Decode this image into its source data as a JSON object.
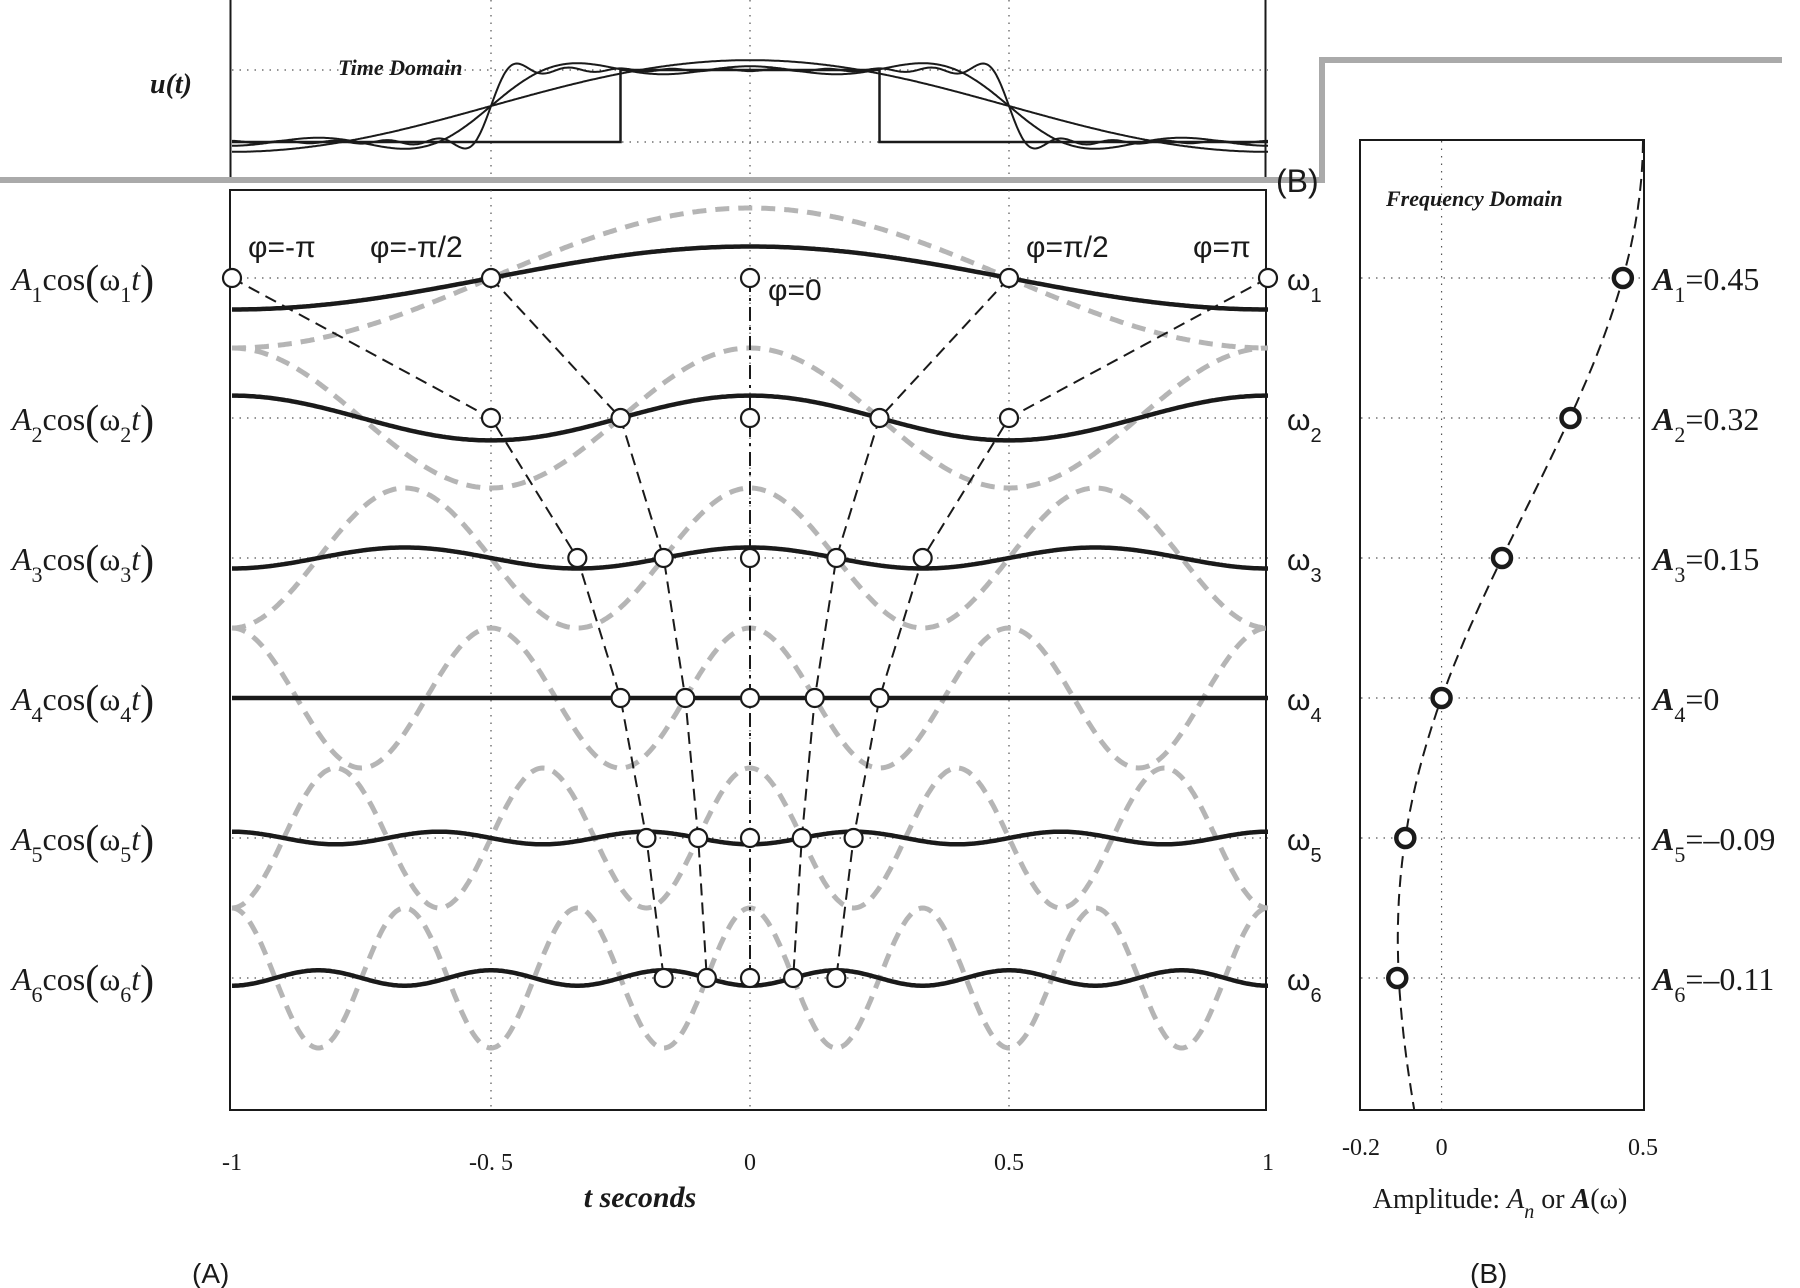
{
  "panel_labels": {
    "a": "(A)",
    "b": "(B)",
    "b_clipped": "(B)"
  },
  "time_panel": {
    "title": "Time Domain",
    "y_label": "u(t)"
  },
  "freq_panel": {
    "title": "Frequency Domain",
    "xlabel_prefix": "Amplitude: ",
    "xlabel_An": "A",
    "xlabel_sub": "n",
    "xlabel_or": " or ",
    "xlabel_Aw": "A",
    "xlabel_w": "(ω)"
  },
  "colors": {
    "ink": "#1a1a1a",
    "shifted": "#b5b5b5",
    "grid": "#555555",
    "frame": "#aaaaaa"
  },
  "chart_data": [
    {
      "type": "line",
      "title": "Time Domain",
      "ylabel": "u(t)",
      "xlim": [
        -1,
        1
      ],
      "description_of_series": "rectangular pulse u(t)=1 for |t|<0.25 and its partial Fourier sums",
      "series": [
        {
          "kind": "pulse",
          "half_width": 0.25
        },
        {
          "kind": "partial_sum",
          "harmonics": 2
        },
        {
          "kind": "partial_sum",
          "harmonics": 6
        },
        {
          "kind": "partial_sum",
          "harmonics": 20
        }
      ]
    },
    {
      "type": "line",
      "xlabel": "t seconds",
      "xlim": [
        -1,
        1
      ],
      "xticks": [
        "-1",
        "-0. 5",
        "0",
        "0.5",
        "1"
      ],
      "xtick_values": [
        -1,
        -0.5,
        0,
        0.5,
        1
      ],
      "harmonics": [
        {
          "n": 1,
          "coef": "A",
          "sub": "1",
          "omega": "ω",
          "omega_sub": "1",
          "amplitude": 0.45
        },
        {
          "n": 2,
          "coef": "A",
          "sub": "2",
          "omega": "ω",
          "omega_sub": "2",
          "amplitude": 0.32
        },
        {
          "n": 3,
          "coef": "A",
          "sub": "3",
          "omega": "ω",
          "omega_sub": "3",
          "amplitude": 0.15
        },
        {
          "n": 4,
          "coef": "A",
          "sub": "4",
          "omega": "ω",
          "omega_sub": "4",
          "amplitude": 0
        },
        {
          "n": 5,
          "coef": "A",
          "sub": "5",
          "omega": "ω",
          "omega_sub": "5",
          "amplitude": -0.09
        },
        {
          "n": 6,
          "coef": "A",
          "sub": "6",
          "omega": "ω",
          "omega_sub": "6",
          "amplitude": -0.11
        }
      ],
      "phase_labels": [
        {
          "text": "φ=-π",
          "t": -1
        },
        {
          "text": "φ=-π/2",
          "t": -0.5
        },
        {
          "text": "φ=0",
          "t": 0
        },
        {
          "text": "φ=π/2",
          "t": 0.5
        },
        {
          "text": "φ=π",
          "t": 1
        }
      ],
      "phase_fractions": [
        -1,
        -0.5,
        0,
        0.5,
        1
      ]
    },
    {
      "type": "scatter",
      "title": "Frequency Domain",
      "xlabel": "Amplitude: A_n or A(ω)",
      "xlim": [
        -0.2,
        0.5
      ],
      "xticks": [
        "-0.2",
        "0",
        "0.5"
      ],
      "xtick_values": [
        -0.2,
        0,
        0.5
      ],
      "points": [
        {
          "label": "A",
          "sub": "1",
          "value": "=0.45",
          "x": 0.45
        },
        {
          "label": "A",
          "sub": "2",
          "value": "=0.32",
          "x": 0.32
        },
        {
          "label": "A",
          "sub": "3",
          "value": "=0.15",
          "x": 0.15
        },
        {
          "label": "A",
          "sub": "4",
          "value": "=0",
          "x": 0
        },
        {
          "label": "A",
          "sub": "5",
          "value": "=–0.09",
          "x": -0.09
        },
        {
          "label": "A",
          "sub": "6",
          "value": "=–0.11",
          "x": -0.11
        }
      ]
    }
  ]
}
